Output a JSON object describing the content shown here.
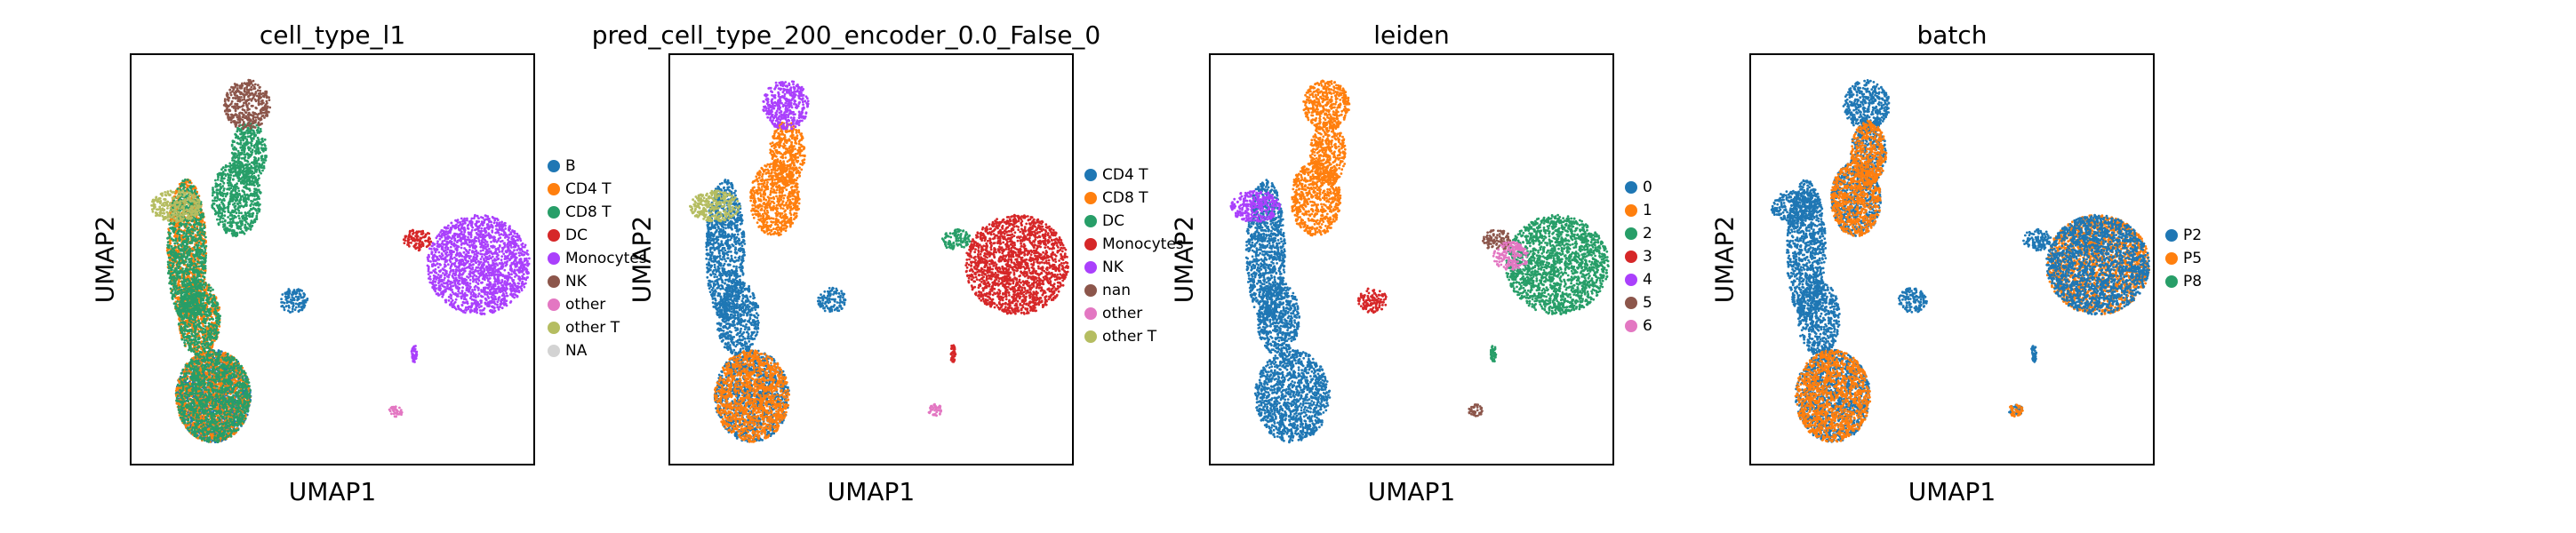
{
  "chart_data": [
    {
      "type": "scatter",
      "title": "cell_type_l1",
      "xlabel": "UMAP1",
      "ylabel": "UMAP2",
      "grid": false,
      "legend_placement": "right",
      "categories": [
        {
          "name": "B",
          "color": "#1f77b4"
        },
        {
          "name": "CD4 T",
          "color": "#ff7f0e"
        },
        {
          "name": "CD8 T",
          "color": "#279e68"
        },
        {
          "name": "DC",
          "color": "#d62728"
        },
        {
          "name": "Monocytes",
          "color": "#aa40fc"
        },
        {
          "name": "NK",
          "color": "#8c564b"
        },
        {
          "name": "other",
          "color": "#e377c2"
        },
        {
          "name": "other T",
          "color": "#b5bd61"
        },
        {
          "name": "NA",
          "color": "#d3d3d3"
        }
      ],
      "clusters": [
        {
          "category": "B",
          "region": "island"
        },
        {
          "category": "B",
          "region": "bottom"
        },
        {
          "category": "CD4 T",
          "region": "bottom"
        },
        {
          "category": "CD8 T",
          "region": "bottom"
        },
        {
          "category": "CD4 T",
          "region": "stem"
        },
        {
          "category": "CD8 T",
          "region": "stem"
        },
        {
          "category": "CD8 T",
          "region": "upper"
        },
        {
          "category": "other T",
          "region": "upperleft"
        },
        {
          "category": "NK",
          "region": "top"
        },
        {
          "category": "Monocytes",
          "region": "mono"
        },
        {
          "category": "DC",
          "region": "dc"
        },
        {
          "category": "other",
          "region": "small"
        },
        {
          "category": "Monocytes",
          "region": "tiny"
        }
      ]
    },
    {
      "type": "scatter",
      "title": "pred_cell_type_200_encoder_0.0_False_0",
      "xlabel": "UMAP1",
      "ylabel": "UMAP2",
      "grid": false,
      "legend_placement": "right",
      "categories": [
        {
          "name": "CD4 T",
          "color": "#1f77b4"
        },
        {
          "name": "CD8 T",
          "color": "#ff7f0e"
        },
        {
          "name": "DC",
          "color": "#279e68"
        },
        {
          "name": "Monocytes",
          "color": "#d62728"
        },
        {
          "name": "NK",
          "color": "#aa40fc"
        },
        {
          "name": "nan",
          "color": "#8c564b"
        },
        {
          "name": "other",
          "color": "#e377c2"
        },
        {
          "name": "other T",
          "color": "#b5bd61"
        }
      ],
      "clusters": [
        {
          "category": "CD4 T",
          "region": "island"
        },
        {
          "category": "CD4 T",
          "region": "bottom"
        },
        {
          "category": "CD8 T",
          "region": "bottom"
        },
        {
          "category": "CD4 T",
          "region": "stem"
        },
        {
          "category": "CD8 T",
          "region": "upper"
        },
        {
          "category": "other T",
          "region": "upperleft"
        },
        {
          "category": "NK",
          "region": "top"
        },
        {
          "category": "Monocytes",
          "region": "mono"
        },
        {
          "category": "DC",
          "region": "dc"
        },
        {
          "category": "other",
          "region": "small"
        },
        {
          "category": "Monocytes",
          "region": "tiny"
        }
      ]
    },
    {
      "type": "scatter",
      "title": "leiden",
      "xlabel": "UMAP1",
      "ylabel": "UMAP2",
      "grid": false,
      "legend_placement": "right",
      "categories": [
        {
          "name": "0",
          "color": "#1f77b4"
        },
        {
          "name": "1",
          "color": "#ff7f0e"
        },
        {
          "name": "2",
          "color": "#279e68"
        },
        {
          "name": "3",
          "color": "#d62728"
        },
        {
          "name": "4",
          "color": "#aa40fc"
        },
        {
          "name": "5",
          "color": "#8c564b"
        },
        {
          "name": "6",
          "color": "#e377c2"
        }
      ],
      "clusters": [
        {
          "category": "0",
          "region": "bottom"
        },
        {
          "category": "0",
          "region": "stem"
        },
        {
          "category": "1",
          "region": "upper"
        },
        {
          "category": "1",
          "region": "top"
        },
        {
          "category": "4",
          "region": "upperleft"
        },
        {
          "category": "3",
          "region": "island"
        },
        {
          "category": "2",
          "region": "mono"
        },
        {
          "category": "5",
          "region": "dc"
        },
        {
          "category": "6",
          "region": "monoleft"
        },
        {
          "category": "5",
          "region": "small"
        },
        {
          "category": "2",
          "region": "tiny"
        }
      ]
    },
    {
      "type": "scatter",
      "title": "batch",
      "xlabel": "UMAP1",
      "ylabel": "UMAP2",
      "grid": false,
      "legend_placement": "right",
      "categories": [
        {
          "name": "P2",
          "color": "#1f77b4"
        },
        {
          "name": "P5",
          "color": "#ff7f0e"
        },
        {
          "name": "P8",
          "color": "#279e68"
        }
      ],
      "clusters": [
        {
          "category": "P2",
          "region": "bottom"
        },
        {
          "category": "P2",
          "region": "stem"
        },
        {
          "category": "P2",
          "region": "upper"
        },
        {
          "category": "P2",
          "region": "top"
        },
        {
          "category": "P2",
          "region": "upperleft"
        },
        {
          "category": "P2",
          "region": "island"
        },
        {
          "category": "P5",
          "region": "mono"
        },
        {
          "category": "P2",
          "region": "mono"
        },
        {
          "category": "P5",
          "region": "upper"
        },
        {
          "category": "P5",
          "region": "bottom"
        },
        {
          "category": "P2",
          "region": "small"
        },
        {
          "category": "P5",
          "region": "small"
        },
        {
          "category": "P2",
          "region": "tiny"
        },
        {
          "category": "P2",
          "region": "dc"
        }
      ]
    }
  ]
}
